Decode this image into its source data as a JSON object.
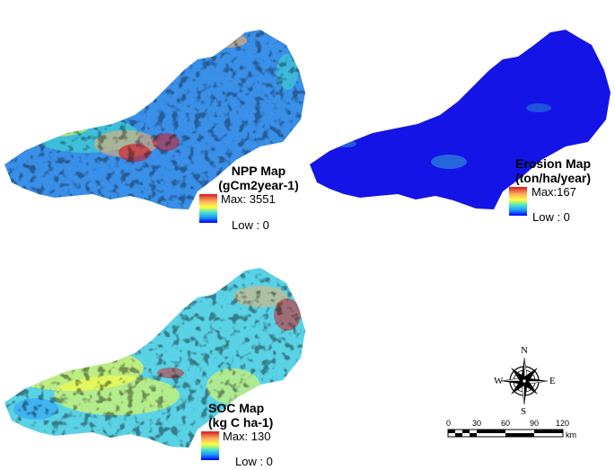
{
  "maps": {
    "npp": {
      "title_line1": "NPP Map",
      "title_line2": "(gCm2year-1)",
      "max_label": "Max: 3551",
      "low_label": "Low : 0"
    },
    "erosion": {
      "title_line1": "Erosion Map",
      "title_line2": "(ton/ha/year)",
      "max_label": "Max:167",
      "low_label": "Low : 0"
    },
    "soc": {
      "title_line1": "SOC Map",
      "title_line2": "(kg C ha-1)",
      "max_label": "Max: 130",
      "low_label": "Low : 0"
    }
  },
  "compass": {
    "n": "N",
    "s": "S",
    "e": "E",
    "w": "W"
  },
  "scale_bar": {
    "ticks": [
      "0",
      "30",
      "60",
      "90",
      "120"
    ],
    "unit": "km"
  },
  "colors": {
    "npp_base": "#3a8fe8",
    "erosion_base": "#1414e6",
    "soc_base": "#5ad2e6",
    "ramp": [
      "#d7191c",
      "#fdae61",
      "#ffff40",
      "#40e0d0",
      "#1e90ff",
      "#0000ff"
    ]
  }
}
